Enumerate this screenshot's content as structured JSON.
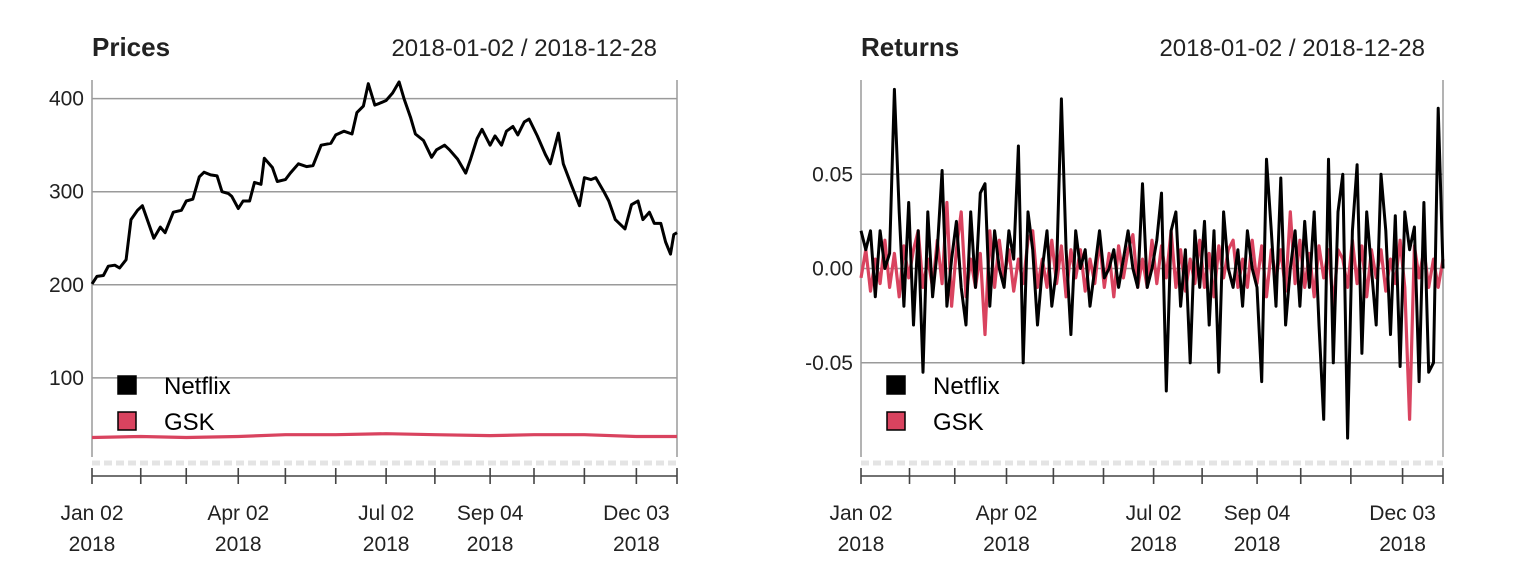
{
  "chart_data": [
    {
      "type": "line",
      "title": "Prices",
      "date_range": "2018-01-02 / 2018-12-28",
      "ylim": [
        15,
        420
      ],
      "yticks": [
        100,
        200,
        300,
        400
      ],
      "ytick_labels": [
        "100",
        "200",
        "300",
        "400"
      ],
      "x_ticks": [
        {
          "date": "2018-01-02",
          "label": [
            "Jan 02",
            "2018"
          ]
        },
        {
          "date": "2018-04-02",
          "label": [
            "Apr 02",
            "2018"
          ]
        },
        {
          "date": "2018-07-02",
          "label": [
            "Jul 02",
            "2018"
          ]
        },
        {
          "date": "2018-09-04",
          "label": [
            "Sep 04",
            "2018"
          ]
        },
        {
          "date": "2018-12-03",
          "label": [
            "Dec 03",
            "2018"
          ]
        }
      ],
      "legend_position": "bottom-left",
      "series": [
        {
          "name": "Netflix",
          "color": "#000000",
          "points": [
            [
              "2018-01-02",
              201
            ],
            [
              "2018-01-05",
              209
            ],
            [
              "2018-01-09",
              210
            ],
            [
              "2018-01-12",
              220
            ],
            [
              "2018-01-16",
              221
            ],
            [
              "2018-01-19",
              218
            ],
            [
              "2018-01-23",
              227
            ],
            [
              "2018-01-26",
              270
            ],
            [
              "2018-01-30",
              280
            ],
            [
              "2018-02-02",
              285
            ],
            [
              "2018-02-06",
              265
            ],
            [
              "2018-02-09",
              250
            ],
            [
              "2018-02-13",
              262
            ],
            [
              "2018-02-16",
              256
            ],
            [
              "2018-02-21",
              278
            ],
            [
              "2018-02-26",
              280
            ],
            [
              "2018-03-01",
              290
            ],
            [
              "2018-03-05",
              292
            ],
            [
              "2018-03-09",
              316
            ],
            [
              "2018-03-12",
              321
            ],
            [
              "2018-03-16",
              318
            ],
            [
              "2018-03-20",
              317
            ],
            [
              "2018-03-23",
              300
            ],
            [
              "2018-03-27",
              298
            ],
            [
              "2018-03-29",
              295
            ],
            [
              "2018-04-02",
              282
            ],
            [
              "2018-04-05",
              290
            ],
            [
              "2018-04-09",
              290
            ],
            [
              "2018-04-12",
              310
            ],
            [
              "2018-04-16",
              308
            ],
            [
              "2018-04-18",
              336
            ],
            [
              "2018-04-23",
              326
            ],
            [
              "2018-04-26",
              311
            ],
            [
              "2018-05-01",
              313
            ],
            [
              "2018-05-04",
              320
            ],
            [
              "2018-05-09",
              330
            ],
            [
              "2018-05-14",
              327
            ],
            [
              "2018-05-18",
              328
            ],
            [
              "2018-05-23",
              350
            ],
            [
              "2018-05-29",
              352
            ],
            [
              "2018-06-01",
              361
            ],
            [
              "2018-06-06",
              365
            ],
            [
              "2018-06-11",
              362
            ],
            [
              "2018-06-14",
              385
            ],
            [
              "2018-06-18",
              392
            ],
            [
              "2018-06-21",
              416
            ],
            [
              "2018-06-25",
              393
            ],
            [
              "2018-06-28",
              395
            ],
            [
              "2018-07-02",
              398
            ],
            [
              "2018-07-06",
              406
            ],
            [
              "2018-07-10",
              418
            ],
            [
              "2018-07-13",
              400
            ],
            [
              "2018-07-17",
              380
            ],
            [
              "2018-07-20",
              362
            ],
            [
              "2018-07-25",
              355
            ],
            [
              "2018-07-30",
              337
            ],
            [
              "2018-08-02",
              345
            ],
            [
              "2018-08-07",
              350
            ],
            [
              "2018-08-10",
              345
            ],
            [
              "2018-08-15",
              335
            ],
            [
              "2018-08-20",
              320
            ],
            [
              "2018-08-23",
              335
            ],
            [
              "2018-08-27",
              357
            ],
            [
              "2018-08-30",
              367
            ],
            [
              "2018-09-04",
              350
            ],
            [
              "2018-09-07",
              360
            ],
            [
              "2018-09-11",
              350
            ],
            [
              "2018-09-14",
              365
            ],
            [
              "2018-09-18",
              370
            ],
            [
              "2018-09-21",
              361
            ],
            [
              "2018-09-25",
              375
            ],
            [
              "2018-09-28",
              378
            ],
            [
              "2018-10-03",
              360
            ],
            [
              "2018-10-08",
              340
            ],
            [
              "2018-10-11",
              330
            ],
            [
              "2018-10-16",
              363
            ],
            [
              "2018-10-19",
              330
            ],
            [
              "2018-10-24",
              307
            ],
            [
              "2018-10-29",
              285
            ],
            [
              "2018-11-01",
              315
            ],
            [
              "2018-11-05",
              313
            ],
            [
              "2018-11-08",
              315
            ],
            [
              "2018-11-13",
              300
            ],
            [
              "2018-11-16",
              290
            ],
            [
              "2018-11-20",
              270
            ],
            [
              "2018-11-26",
              260
            ],
            [
              "2018-11-30",
              286
            ],
            [
              "2018-12-04",
              290
            ],
            [
              "2018-12-07",
              270
            ],
            [
              "2018-12-11",
              278
            ],
            [
              "2018-12-14",
              266
            ],
            [
              "2018-12-18",
              266
            ],
            [
              "2018-12-21",
              246
            ],
            [
              "2018-12-24",
              233
            ],
            [
              "2018-12-26",
              254
            ],
            [
              "2018-12-28",
              256
            ]
          ]
        },
        {
          "name": "GSK",
          "color": "#d9435f",
          "points": [
            [
              "2018-01-02",
              36
            ],
            [
              "2018-02-01",
              37
            ],
            [
              "2018-03-01",
              36
            ],
            [
              "2018-04-02",
              37
            ],
            [
              "2018-05-01",
              39
            ],
            [
              "2018-06-01",
              39
            ],
            [
              "2018-07-02",
              40
            ],
            [
              "2018-08-01",
              39
            ],
            [
              "2018-09-04",
              38
            ],
            [
              "2018-10-01",
              39
            ],
            [
              "2018-11-01",
              39
            ],
            [
              "2018-12-03",
              37
            ],
            [
              "2018-12-28",
              37
            ]
          ]
        }
      ]
    },
    {
      "type": "line",
      "title": "Returns",
      "date_range": "2018-01-02 / 2018-12-28",
      "ylim": [
        -0.1,
        0.1
      ],
      "yticks": [
        -0.05,
        0.0,
        0.05
      ],
      "ytick_labels": [
        "-0.05",
        "0.00",
        "0.05"
      ],
      "x_ticks": [
        {
          "date": "2018-01-02",
          "label": [
            "Jan 02",
            "2018"
          ]
        },
        {
          "date": "2018-04-02",
          "label": [
            "Apr 02",
            "2018"
          ]
        },
        {
          "date": "2018-07-02",
          "label": [
            "Jul 02",
            "2018"
          ]
        },
        {
          "date": "2018-09-04",
          "label": [
            "Sep 04",
            "2018"
          ]
        },
        {
          "date": "2018-12-03",
          "label": [
            "Dec 03",
            "2018"
          ]
        }
      ],
      "legend_position": "bottom-left",
      "series": [
        {
          "name": "Netflix",
          "color": "#000000",
          "values": [
            0.02,
            0.01,
            0.02,
            -0.015,
            0.02,
            0.0,
            0.008,
            0.095,
            0.03,
            -0.02,
            0.035,
            -0.03,
            0.02,
            -0.055,
            0.03,
            -0.015,
            0.01,
            0.052,
            -0.02,
            0.005,
            0.025,
            -0.01,
            -0.03,
            0.03,
            -0.01,
            0.04,
            0.045,
            -0.02,
            0.02,
            0.0,
            -0.01,
            0.02,
            0.005,
            0.065,
            -0.05,
            0.03,
            0.01,
            -0.03,
            0.0,
            0.02,
            -0.02,
            0.0,
            0.09,
            0.01,
            -0.035,
            0.02,
            0.0,
            0.01,
            -0.02,
            0.0,
            0.02,
            -0.005,
            0.0,
            0.01,
            -0.01,
            0.005,
            0.02,
            0.0,
            -0.01,
            0.045,
            -0.01,
            0.0,
            0.015,
            0.04,
            -0.065,
            0.02,
            0.03,
            -0.02,
            0.01,
            -0.05,
            0.02,
            -0.01,
            0.025,
            -0.03,
            0.02,
            -0.055,
            0.03,
            0.0,
            -0.01,
            0.01,
            -0.02,
            0.02,
            0.0,
            -0.01,
            -0.06,
            0.058,
            0.02,
            -0.02,
            0.048,
            -0.03,
            0.0,
            0.02,
            -0.02,
            0.025,
            -0.01,
            0.03,
            -0.03,
            -0.08,
            0.058,
            -0.05,
            0.03,
            0.05,
            -0.09,
            0.02,
            0.055,
            -0.045,
            0.03,
            0.0,
            -0.03,
            0.05,
            0.02,
            -0.035,
            0.028,
            -0.052,
            0.03,
            0.01,
            0.022,
            -0.06,
            0.035,
            -0.055,
            -0.05,
            0.085,
            0.0
          ]
        },
        {
          "name": "GSK",
          "color": "#d9435f",
          "values": [
            -0.005,
            0.01,
            -0.012,
            0.005,
            -0.008,
            0.015,
            -0.01,
            0.008,
            -0.015,
            0.012,
            -0.005,
            0.01,
            0.02,
            -0.01,
            0.005,
            -0.01,
            0.015,
            -0.008,
            0.035,
            -0.02,
            0.01,
            0.03,
            -0.015,
            0.005,
            -0.01,
            0.008,
            -0.035,
            0.02,
            -0.01,
            0.015,
            -0.005,
            0.01,
            -0.012,
            0.005,
            -0.008,
            0.015,
            0.02,
            -0.01,
            0.005,
            -0.01,
            0.015,
            -0.008,
            0.012,
            -0.015,
            0.01,
            -0.005,
            0.01,
            -0.012,
            0.005,
            -0.008,
            0.015,
            -0.01,
            0.008,
            -0.015,
            0.012,
            -0.005,
            0.01,
            0.018,
            -0.01,
            0.005,
            -0.01,
            0.015,
            -0.008,
            0.012,
            -0.005,
            0.02,
            -0.01,
            0.01,
            -0.012,
            0.005,
            -0.008,
            0.015,
            -0.01,
            0.008,
            -0.015,
            0.012,
            -0.005,
            0.01,
            0.015,
            -0.01,
            0.005,
            -0.01,
            0.015,
            -0.008,
            0.012,
            -0.015,
            0.01,
            -0.005,
            0.01,
            -0.012,
            0.03,
            -0.008,
            0.015,
            -0.01,
            0.008,
            -0.015,
            0.012,
            -0.005,
            0.01,
            -0.02,
            0.01,
            0.005,
            -0.01,
            0.015,
            -0.008,
            0.012,
            -0.015,
            0.01,
            -0.005,
            0.01,
            -0.012,
            0.005,
            -0.008,
            0.015,
            -0.01,
            -0.08,
            0.012,
            -0.005,
            0.01,
            -0.01,
            0.005,
            -0.01,
            0.005
          ]
        }
      ]
    }
  ]
}
